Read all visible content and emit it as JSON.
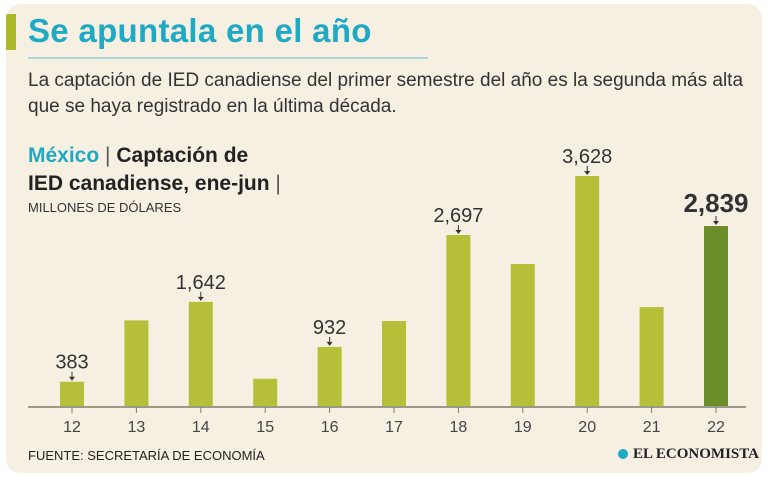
{
  "header": {
    "title": "Se apuntala en el año",
    "subtitle": "La captación de IED canadiense del primer semestre del año es la segunda más alta que se haya registrado en la última década."
  },
  "chart_head": {
    "country": "México",
    "sep": "|",
    "title_line1": "Captación de",
    "title_line2": "IED canadiense, ene-jun",
    "sep2": "|",
    "units": "MILLONES DE DÓLARES"
  },
  "footer": {
    "source": "FUENTE: SECRETARÍA DE ECONOMÍA",
    "brand": "EL ECONOMISTA"
  },
  "colors": {
    "title": "#1fa9c4",
    "bar": "#b5c038",
    "bar_highlight": "#6b8e2a",
    "background": "#f6f0e2"
  },
  "chart_data": {
    "type": "bar",
    "categories": [
      "12",
      "13",
      "14",
      "15",
      "16",
      "17",
      "18",
      "19",
      "20",
      "21",
      "22"
    ],
    "values": [
      383,
      1350,
      1642,
      430,
      932,
      1340,
      2697,
      2240,
      3628,
      1560,
      2839
    ],
    "data_labels": [
      "383",
      "",
      "1,642",
      "",
      "932",
      "",
      "2,697",
      "",
      "3,628",
      "",
      "2,839"
    ],
    "highlight_index": 10,
    "title": "Captación de IED canadiense, ene-jun",
    "xlabel": "",
    "ylabel": "MILLONES DE DÓLARES",
    "ylim": [
      0,
      3628
    ],
    "grid": false
  }
}
